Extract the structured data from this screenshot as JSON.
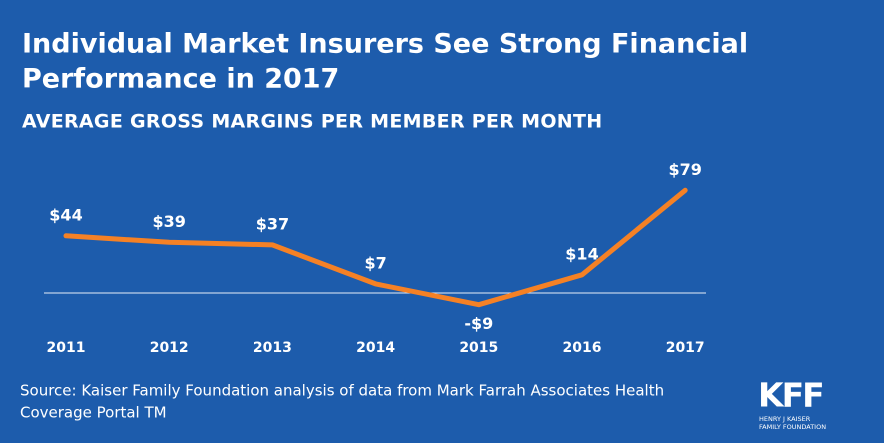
{
  "chart_data": {
    "type": "line",
    "title": [
      "Individual Market Insurers See Strong Financial",
      "Performance in 2017"
    ],
    "subtitle": "AVERAGE GROSS MARGINS PER MEMBER PER MONTH",
    "categories": [
      "2011",
      "2012",
      "2013",
      "2014",
      "2015",
      "2016",
      "2017"
    ],
    "series": [
      {
        "color": "#f58125",
        "values": [
          44,
          39,
          37,
          7,
          -9,
          14,
          79
        ],
        "value_labels": [
          "$44",
          "$39",
          "$37",
          "$7",
          "-$9",
          "$14",
          "$79"
        ]
      }
    ],
    "ylim": [
      -20,
      90
    ],
    "source": [
      "Source: Kaiser Family Foundation analysis of data from Mark Farrah Associates Health",
      "Coverage Portal TM"
    ],
    "logo": {
      "text": "KFF",
      "subtitle": [
        "HENRY J KAISER",
        "FAMILY FOUNDATION"
      ]
    }
  }
}
